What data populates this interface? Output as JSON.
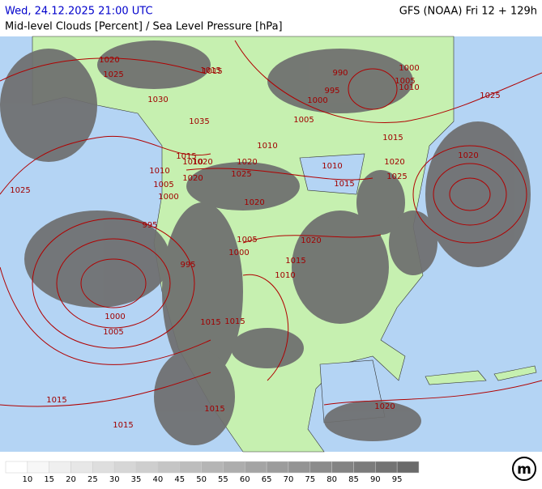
{
  "header": {
    "datetime": "Wed, 24.12.2025 21:00 UTC",
    "model": "GFS (NOAA) Fri 12 + 129h",
    "title": "Mid-level Clouds [Percent] / Sea Level Pressure [hPa]"
  },
  "isobar_labels": [
    "1020",
    "1025",
    "1015",
    "1030",
    "1035",
    "1010",
    "1010",
    "1005",
    "1000",
    "995",
    "990",
    "1025",
    "1025",
    "1010",
    "1005",
    "1000",
    "995",
    "1000",
    "1005",
    "1010",
    "1015",
    "1020",
    "1020",
    "1025",
    "1010",
    "1015",
    "1020",
    "1020",
    "1015",
    "1015",
    "1020",
    "1015",
    "1010",
    "1005",
    "1000",
    "995",
    "1005",
    "1015",
    "1015",
    "1025",
    "1020",
    "1015",
    "1015",
    "1015",
    "1020",
    "1020",
    "1000"
  ],
  "color_scale": {
    "labels": [
      "10",
      "15",
      "20",
      "25",
      "30",
      "35",
      "40",
      "45",
      "50",
      "55",
      "60",
      "65",
      "70",
      "75",
      "80",
      "85",
      "90",
      "95"
    ],
    "colors": [
      "#ffffff",
      "#f7f7f7",
      "#efefef",
      "#e7e7e7",
      "#dedede",
      "#d6d6d6",
      "#cecece",
      "#c5c5c5",
      "#bdbdbd",
      "#b5b5b5",
      "#adadad",
      "#a4a4a4",
      "#9c9c9c",
      "#949494",
      "#8b8b8b",
      "#838383",
      "#7b7b7b",
      "#737373",
      "#6a6a6a"
    ]
  },
  "logo": {
    "text": "m"
  }
}
